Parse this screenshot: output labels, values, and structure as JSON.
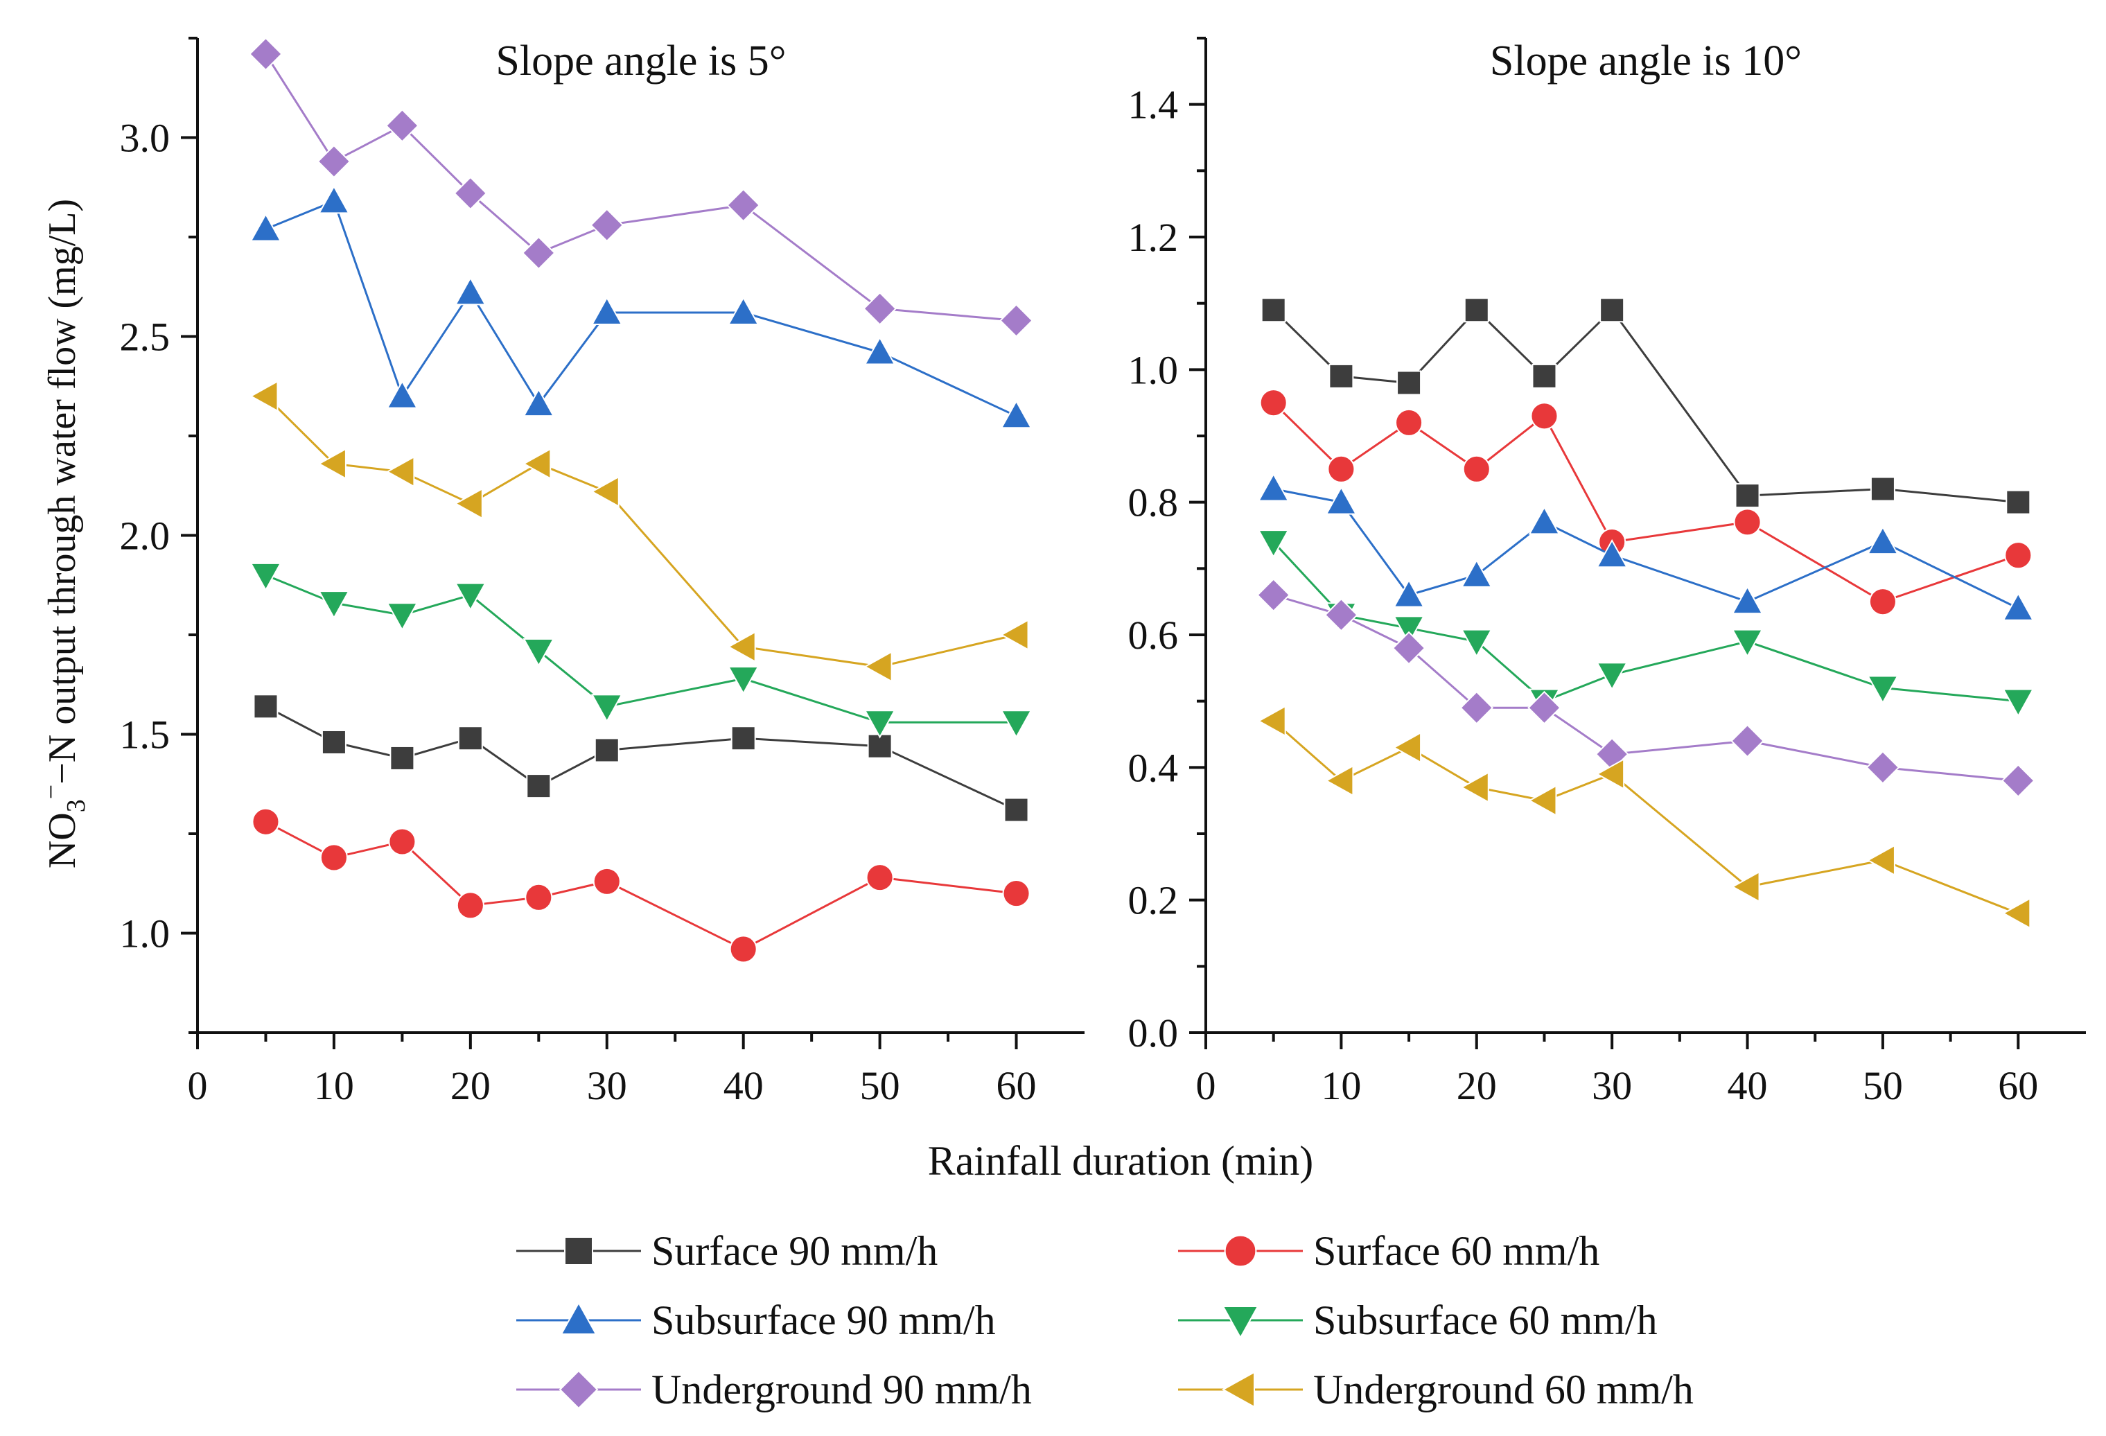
{
  "figure": {
    "y_axis_label_main": "NO",
    "y_axis_label_sub": "3",
    "y_axis_label_sup": "−",
    "y_axis_label_rest": "−N output through water flow (mg/L)",
    "x_axis_label": "Rainfall duration (min)"
  },
  "chart_data": [
    {
      "type": "line",
      "title": "Slope angle is 5°",
      "xlabel": "Rainfall duration (min)",
      "ylabel": "NO3−−N output through water flow (mg/L)",
      "xlim": [
        0,
        65
      ],
      "ylim": [
        0.75,
        3.25
      ],
      "xticks": [
        0,
        10,
        20,
        30,
        40,
        50,
        60
      ],
      "xtick_labels": [
        "0",
        "10",
        "20",
        "30",
        "40",
        "50",
        "60"
      ],
      "yticks": [
        1.0,
        1.5,
        2.0,
        2.5,
        3.0
      ],
      "ytick_labels": [
        "1.0",
        "1.5",
        "2.0",
        "2.5",
        "3.0"
      ],
      "grid": false,
      "x": [
        5,
        10,
        15,
        20,
        25,
        30,
        40,
        50,
        60
      ],
      "series": [
        {
          "name": "Surface 90 mm/h",
          "color": "#3d3d3d",
          "marker": "square",
          "values": [
            1.57,
            1.48,
            1.44,
            1.49,
            1.37,
            1.46,
            1.49,
            1.47,
            1.31
          ]
        },
        {
          "name": "Surface 60 mm/h",
          "color": "#e8383a",
          "marker": "circle",
          "values": [
            1.28,
            1.19,
            1.23,
            1.07,
            1.09,
            1.13,
            0.96,
            1.14,
            1.1
          ]
        },
        {
          "name": "Subsurface 90 mm/h",
          "color": "#2c6fc8",
          "marker": "triangle-up",
          "values": [
            2.77,
            2.84,
            2.35,
            2.61,
            2.33,
            2.56,
            2.56,
            2.46,
            2.3
          ]
        },
        {
          "name": "Subsurface 60 mm/h",
          "color": "#24a85a",
          "marker": "triangle-down",
          "values": [
            1.9,
            1.83,
            1.8,
            1.85,
            1.71,
            1.57,
            1.64,
            1.53,
            1.53
          ]
        },
        {
          "name": "Underground 90 mm/h",
          "color": "#a47cc9",
          "marker": "diamond",
          "values": [
            3.21,
            2.94,
            3.03,
            2.86,
            2.71,
            2.78,
            2.83,
            2.57,
            2.54
          ]
        },
        {
          "name": "Underground 60 mm/h",
          "color": "#d6a521",
          "marker": "triangle-left",
          "values": [
            2.35,
            2.18,
            2.16,
            2.08,
            2.18,
            2.11,
            1.72,
            1.67,
            1.75
          ]
        }
      ]
    },
    {
      "type": "line",
      "title": "Slope angle is 10°",
      "xlabel": "Rainfall duration (min)",
      "ylabel": "NO3−−N output through water flow (mg/L)",
      "xlim": [
        0,
        65
      ],
      "ylim": [
        0,
        1.5
      ],
      "xticks": [
        0,
        10,
        20,
        30,
        40,
        50,
        60
      ],
      "xtick_labels": [
        "0",
        "10",
        "20",
        "30",
        "40",
        "50",
        "60"
      ],
      "yticks": [
        0.0,
        0.2,
        0.4,
        0.6,
        0.8,
        1.0,
        1.2,
        1.4
      ],
      "ytick_labels": [
        "0.0",
        "0.2",
        "0.4",
        "0.6",
        "0.8",
        "1.0",
        "1.2",
        "1.4"
      ],
      "grid": false,
      "x": [
        5,
        10,
        15,
        20,
        25,
        30,
        40,
        50,
        60
      ],
      "series": [
        {
          "name": "Surface 90 mm/h",
          "color": "#3d3d3d",
          "marker": "square",
          "values": [
            1.09,
            0.99,
            0.98,
            1.09,
            0.99,
            1.09,
            0.81,
            0.82,
            0.8
          ]
        },
        {
          "name": "Surface 60 mm/h",
          "color": "#e8383a",
          "marker": "circle",
          "values": [
            0.95,
            0.85,
            0.92,
            0.85,
            0.93,
            0.74,
            0.77,
            0.65,
            0.72
          ]
        },
        {
          "name": "Subsurface 90 mm/h",
          "color": "#2c6fc8",
          "marker": "triangle-up",
          "values": [
            0.82,
            0.8,
            0.66,
            0.69,
            0.77,
            0.72,
            0.65,
            0.74,
            0.64
          ]
        },
        {
          "name": "Subsurface 60 mm/h",
          "color": "#24a85a",
          "marker": "triangle-down",
          "values": [
            0.74,
            0.63,
            0.61,
            0.59,
            0.5,
            0.54,
            0.59,
            0.52,
            0.5
          ]
        },
        {
          "name": "Underground 90 mm/h",
          "color": "#a47cc9",
          "marker": "diamond",
          "values": [
            0.66,
            0.63,
            0.58,
            0.49,
            0.49,
            0.42,
            0.44,
            0.4,
            0.38
          ]
        },
        {
          "name": "Underground 60 mm/h",
          "color": "#d6a521",
          "marker": "triangle-left",
          "values": [
            0.47,
            0.38,
            0.43,
            0.37,
            0.35,
            0.39,
            0.22,
            0.26,
            0.18
          ]
        }
      ]
    }
  ],
  "legend": {
    "placement": "bottom",
    "items": [
      {
        "label": "Surface 90 mm/h",
        "color": "#3d3d3d",
        "marker": "square"
      },
      {
        "label": "Surface 60 mm/h",
        "color": "#e8383a",
        "marker": "circle"
      },
      {
        "label": "Subsurface 90 mm/h",
        "color": "#2c6fc8",
        "marker": "triangle-up"
      },
      {
        "label": "Subsurface 60 mm/h",
        "color": "#24a85a",
        "marker": "triangle-down"
      },
      {
        "label": "Underground 90 mm/h",
        "color": "#a47cc9",
        "marker": "diamond"
      },
      {
        "label": "Underground 60 mm/h",
        "color": "#d6a521",
        "marker": "triangle-left"
      }
    ]
  }
}
